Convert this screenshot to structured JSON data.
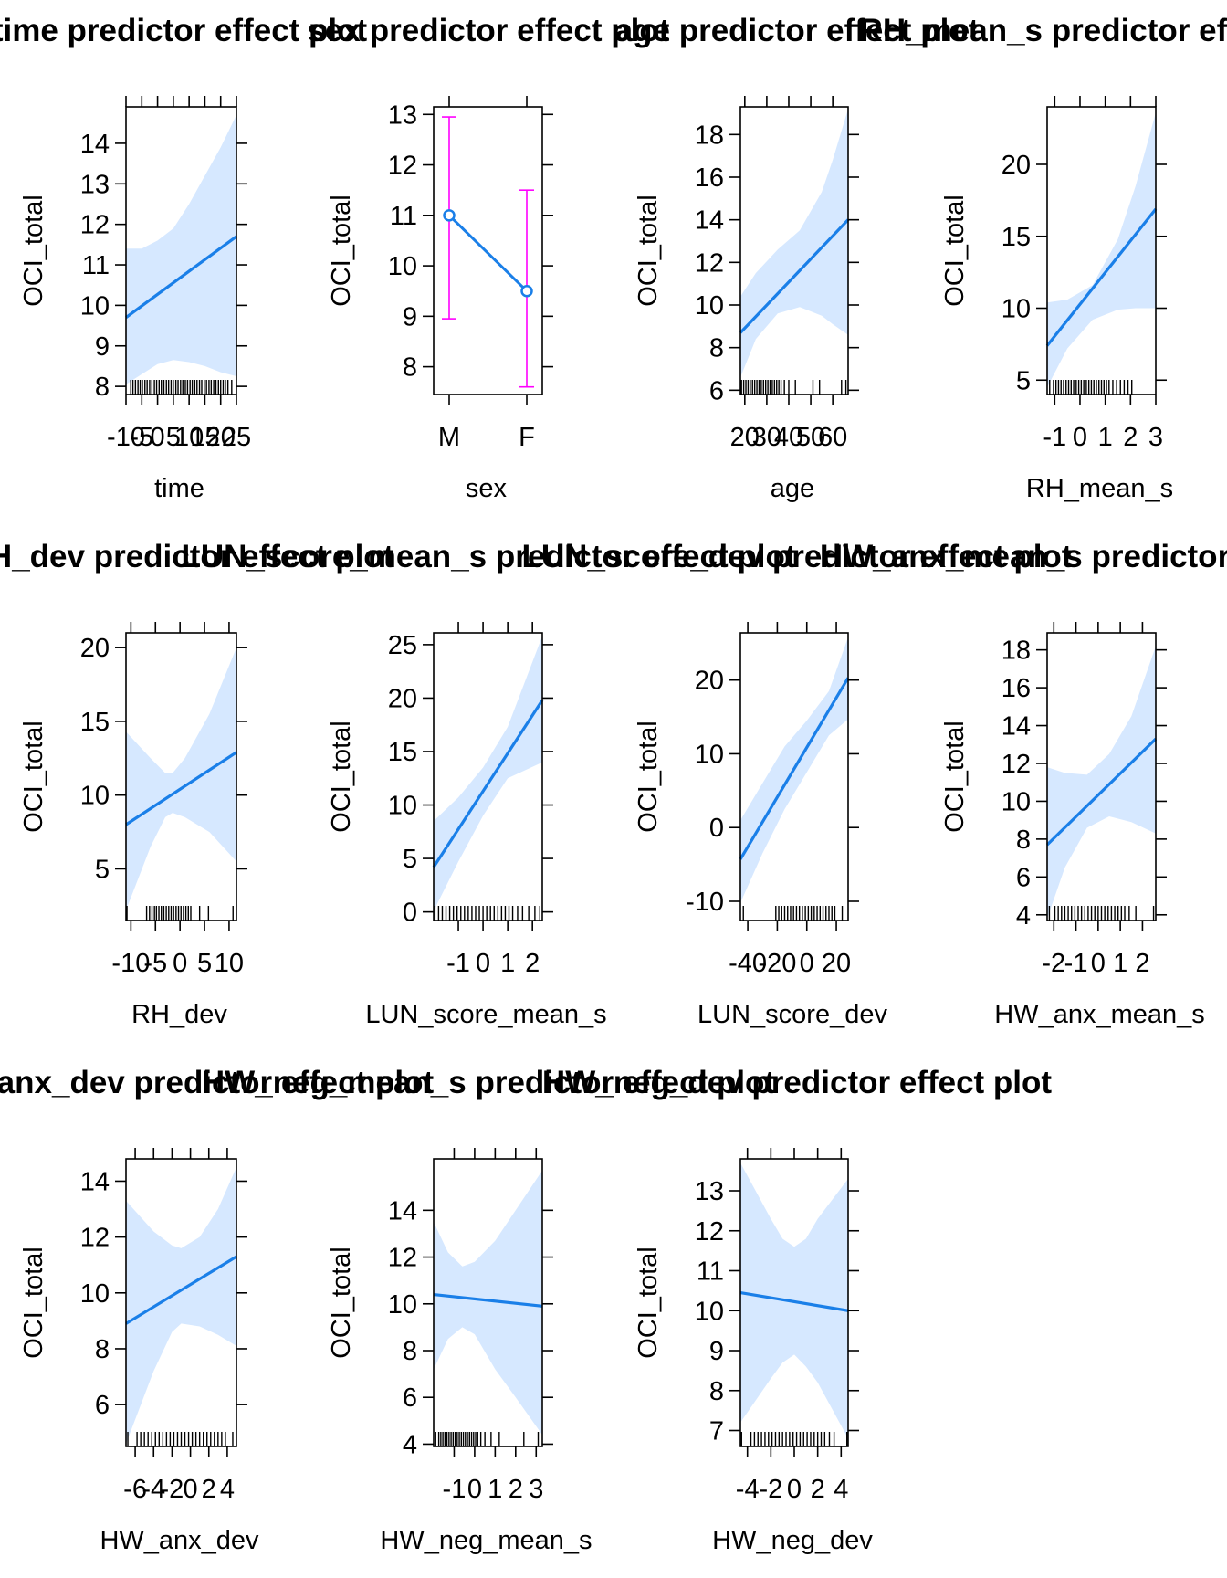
{
  "chart_data": [
    {
      "type": "line",
      "title": "time predictor effect plot",
      "xlabel": "time",
      "ylabel": "OCI_total",
      "xlim": [
        -10,
        25
      ],
      "ylim": [
        7.8,
        14.9
      ],
      "xticks": [
        -10,
        -5,
        0,
        5,
        10,
        15,
        20,
        25
      ],
      "xtick_labels": [
        "-10",
        "-5",
        "0",
        "5",
        "10",
        "15",
        "20",
        "25"
      ],
      "yticks": [
        8,
        9,
        10,
        11,
        12,
        13,
        14
      ],
      "ytick_labels": [
        "8",
        "9",
        "10",
        "11",
        "12",
        "13",
        "14"
      ],
      "fit": {
        "x": [
          -10,
          25
        ],
        "y": [
          9.7,
          11.7
        ]
      },
      "ci_upper": {
        "x": [
          -10,
          -5,
          0,
          5,
          10,
          15,
          20,
          25
        ],
        "y": [
          11.4,
          11.4,
          11.6,
          11.9,
          12.5,
          13.2,
          13.9,
          14.7
        ]
      },
      "ci_lower": {
        "x": [
          -10,
          -5,
          0,
          5,
          10,
          15,
          20,
          25
        ],
        "y": [
          8.05,
          8.3,
          8.55,
          8.65,
          8.6,
          8.5,
          8.35,
          8.25
        ]
      },
      "rug": [
        -8.5,
        -7.8,
        -7,
        -6.2,
        -5.5,
        -4.8,
        -4,
        -3.3,
        -2.5,
        -1.8,
        -1,
        -0.3,
        0.5,
        1.2,
        2,
        2.8,
        3.5,
        4.3,
        5,
        5.8,
        6.5,
        7.3,
        8,
        8.8,
        9.5,
        10.3,
        11,
        11.8,
        12.5,
        13.3,
        14,
        14.8,
        15.5,
        16.3,
        17,
        17.8,
        18.5,
        19.3,
        20,
        20.8,
        21.5,
        22.3,
        23.5
      ]
    },
    {
      "type": "line",
      "title": "sex predictor effect plot",
      "xlabel": "sex",
      "ylabel": "OCI_total",
      "xlim": [
        0.8,
        2.2
      ],
      "ylim": [
        7.45,
        13.15
      ],
      "categories": [
        "M",
        "F"
      ],
      "yticks": [
        8,
        9,
        10,
        11,
        12,
        13
      ],
      "ytick_labels": [
        "8",
        "9",
        "10",
        "11",
        "12",
        "13"
      ],
      "points": [
        11.0,
        9.5
      ],
      "lower": [
        8.95,
        7.6
      ],
      "upper": [
        12.95,
        11.5
      ],
      "colors": {
        "line": "#0080ff",
        "errorbar": "#ff00ff"
      }
    },
    {
      "type": "line",
      "title": "age predictor effect plot",
      "xlabel": "age",
      "ylabel": "OCI_total",
      "xlim": [
        18,
        67
      ],
      "ylim": [
        5.8,
        19.3
      ],
      "xticks": [
        20,
        30,
        40,
        50,
        60
      ],
      "xtick_labels": [
        "20",
        "30",
        "40",
        "50",
        "60"
      ],
      "yticks": [
        6,
        8,
        10,
        12,
        14,
        16,
        18
      ],
      "ytick_labels": [
        "6",
        "8",
        "10",
        "12",
        "14",
        "16",
        "18"
      ],
      "fit": {
        "x": [
          18,
          67
        ],
        "y": [
          8.7,
          14.0
        ]
      },
      "ci_upper": {
        "x": [
          18,
          25,
          35,
          45,
          55,
          60,
          67
        ],
        "y": [
          10.4,
          11.5,
          12.6,
          13.5,
          15.3,
          16.8,
          19.2
        ]
      },
      "ci_lower": {
        "x": [
          18,
          25,
          35,
          45,
          55,
          60,
          67
        ],
        "y": [
          6.6,
          8.4,
          9.6,
          9.9,
          9.5,
          9.1,
          8.6
        ]
      },
      "rug": [
        18.5,
        19.5,
        20.5,
        21.5,
        22.5,
        23.5,
        24.5,
        25.5,
        26.5,
        27.5,
        28.5,
        29.5,
        30.5,
        31.5,
        32.5,
        33.5,
        34.5,
        35.5,
        36.5,
        38,
        40,
        43,
        51,
        54,
        64,
        66
      ]
    },
    {
      "type": "line",
      "title": "RH_mean_s predictor effect plot",
      "xlabel": "RH_mean_s",
      "ylabel": "OCI_total",
      "xlim": [
        -1.3,
        3.0
      ],
      "ylim": [
        4.0,
        24.0
      ],
      "xticks": [
        -1,
        0,
        1,
        2,
        3
      ],
      "xtick_labels": [
        "-1",
        "0",
        "1",
        "2",
        "3"
      ],
      "yticks": [
        5,
        10,
        15,
        20
      ],
      "ytick_labels": [
        "5",
        "10",
        "15",
        "20"
      ],
      "fit": {
        "x": [
          -1.3,
          3.0
        ],
        "y": [
          7.4,
          16.9
        ]
      },
      "ci_upper": {
        "x": [
          -1.3,
          -0.5,
          0.5,
          1.5,
          2.2,
          3.0
        ],
        "y": [
          10.4,
          10.6,
          11.6,
          14.8,
          18.5,
          23.6
        ]
      },
      "ci_lower": {
        "x": [
          -1.3,
          -0.5,
          0.5,
          1.5,
          2.2,
          3.0
        ],
        "y": [
          4.5,
          7.2,
          9.2,
          9.9,
          10.0,
          10.0
        ]
      },
      "rug": [
        -1.2,
        -1.05,
        -0.95,
        -0.85,
        -0.75,
        -0.65,
        -0.55,
        -0.45,
        -0.35,
        -0.25,
        -0.15,
        -0.05,
        0.05,
        0.15,
        0.25,
        0.35,
        0.45,
        0.55,
        0.65,
        0.75,
        0.85,
        0.95,
        1.05,
        1.15,
        1.3,
        1.45,
        1.6,
        1.75,
        1.9,
        2.05
      ]
    },
    {
      "type": "line",
      "title": "RH_dev predictor effect plot",
      "xlabel": "RH_dev",
      "ylabel": "OCI_total",
      "xlim": [
        -11,
        11.5
      ],
      "ylim": [
        1.5,
        21.0
      ],
      "xticks": [
        -10,
        -5,
        0,
        5,
        10
      ],
      "xtick_labels": [
        "-10",
        "-5",
        "0",
        "5",
        "10"
      ],
      "yticks": [
        5,
        10,
        15,
        20
      ],
      "ytick_labels": [
        "5",
        "10",
        "15",
        "20"
      ],
      "fit": {
        "x": [
          -11,
          11.5
        ],
        "y": [
          8.0,
          12.9
        ]
      },
      "ci_upper": {
        "x": [
          -11,
          -6,
          -3,
          -1.5,
          1,
          6,
          11.5
        ],
        "y": [
          14.3,
          12.5,
          11.5,
          11.5,
          12.5,
          15.5,
          20.0
        ]
      },
      "ci_lower": {
        "x": [
          -11,
          -6,
          -3,
          -1.5,
          1,
          6,
          11.5
        ],
        "y": [
          2.2,
          6.5,
          8.5,
          8.8,
          8.5,
          7.5,
          5.5
        ]
      },
      "rug": [
        -10.8,
        -6.8,
        -6.2,
        -5.7,
        -5.2,
        -4.8,
        -4.3,
        -3.8,
        -3.3,
        -2.8,
        -2.3,
        -1.8,
        -1.3,
        -0.8,
        -0.3,
        0.2,
        0.7,
        1.2,
        1.7,
        2.2,
        4,
        5.8,
        10.8
      ]
    },
    {
      "type": "line",
      "title": "LUN_score_mean_s predictor effect plot",
      "xlabel": "LUN_score_mean_s",
      "ylabel": "OCI_total",
      "xlim": [
        -2.0,
        2.4
      ],
      "ylim": [
        -0.8,
        26.1
      ],
      "xticks": [
        -1,
        0,
        1,
        2
      ],
      "xtick_labels": [
        "-1",
        "0",
        "1",
        "2"
      ],
      "yticks": [
        0,
        5,
        10,
        15,
        20,
        25
      ],
      "ytick_labels": [
        "0",
        "5",
        "10",
        "15",
        "20",
        "25"
      ],
      "fit": {
        "x": [
          -2.0,
          2.4
        ],
        "y": [
          4.2,
          19.8
        ]
      },
      "ci_upper": {
        "x": [
          -2.0,
          -1.0,
          0,
          1.0,
          2.4
        ],
        "y": [
          8.5,
          10.7,
          13.5,
          17.3,
          25.8
        ]
      },
      "ci_lower": {
        "x": [
          -2.0,
          -1.0,
          0,
          1.0,
          2.4
        ],
        "y": [
          0.1,
          4.7,
          9.0,
          12.5,
          14.0
        ]
      },
      "rug": [
        -1.95,
        -1.8,
        -1.65,
        -1.5,
        -1.35,
        -1.2,
        -1.05,
        -0.9,
        -0.75,
        -0.6,
        -0.45,
        -0.3,
        -0.15,
        0,
        0.15,
        0.3,
        0.45,
        0.6,
        0.75,
        0.9,
        1.05,
        1.2,
        1.4,
        1.6,
        1.85,
        2.1,
        2.3
      ]
    },
    {
      "type": "line",
      "title": "LUN_score_dev predictor effect plot",
      "xlabel": "LUN_score_dev",
      "ylabel": "OCI_total",
      "xlim": [
        -45,
        28
      ],
      "ylim": [
        -12.6,
        26.4
      ],
      "xticks": [
        -40,
        -20,
        0,
        20
      ],
      "xtick_labels": [
        "-40",
        "-20",
        "0",
        "20"
      ],
      "yticks": [
        -10,
        0,
        10,
        20
      ],
      "ytick_labels": [
        "-10",
        "0",
        "10",
        "20"
      ],
      "fit": {
        "x": [
          -45,
          28
        ],
        "y": [
          -4.3,
          20.3
        ]
      },
      "ci_upper": {
        "x": [
          -45,
          -30,
          -15,
          0,
          15,
          28
        ],
        "y": [
          1.0,
          6.0,
          11.0,
          14.5,
          18.5,
          25.8
        ]
      },
      "ci_lower": {
        "x": [
          -45,
          -30,
          -15,
          0,
          15,
          28
        ],
        "y": [
          -10.2,
          -3.5,
          2.5,
          7.5,
          12.5,
          14.7
        ]
      },
      "rug": [
        -43,
        -21,
        -19,
        -17,
        -15,
        -13,
        -11,
        -9,
        -7,
        -5,
        -3,
        -1,
        1,
        3,
        5,
        7,
        9,
        11,
        13,
        15,
        17,
        19,
        24
      ]
    },
    {
      "type": "line",
      "title": "HW_anx_mean_s predictor effect plot",
      "xlabel": "HW_anx_mean_s",
      "ylabel": "OCI_total",
      "xlim": [
        -2.3,
        2.6
      ],
      "ylim": [
        3.7,
        18.9
      ],
      "xticks": [
        -2,
        -1,
        0,
        1,
        2
      ],
      "xtick_labels": [
        "-2",
        "-1",
        "0",
        "1",
        "2"
      ],
      "yticks": [
        4,
        6,
        8,
        10,
        12,
        14,
        16,
        18
      ],
      "ytick_labels": [
        "4",
        "6",
        "8",
        "10",
        "12",
        "14",
        "16",
        "18"
      ],
      "fit": {
        "x": [
          -2.3,
          2.6
        ],
        "y": [
          7.7,
          13.3
        ]
      },
      "ci_upper": {
        "x": [
          -2.3,
          -1.5,
          -0.5,
          0.5,
          1.5,
          2.6
        ],
        "y": [
          11.8,
          11.5,
          11.4,
          12.5,
          14.5,
          18.2
        ]
      },
      "ci_lower": {
        "x": [
          -2.3,
          -1.5,
          -0.5,
          0.5,
          1.5,
          2.6
        ],
        "y": [
          3.8,
          6.5,
          8.6,
          9.2,
          8.9,
          8.3
        ]
      },
      "rug": [
        -2.2,
        -1.95,
        -1.8,
        -1.65,
        -1.5,
        -1.35,
        -1.2,
        -1.05,
        -0.9,
        -0.75,
        -0.6,
        -0.45,
        -0.3,
        -0.15,
        0,
        0.15,
        0.3,
        0.45,
        0.6,
        0.75,
        0.9,
        1.05,
        1.2,
        1.4,
        1.7,
        2.5
      ]
    },
    {
      "type": "line",
      "title": "HW_anx_dev predictor effect plot",
      "xlabel": "HW_anx_dev",
      "ylabel": "OCI_total",
      "xlim": [
        -7,
        5
      ],
      "ylim": [
        4.5,
        14.8
      ],
      "xticks": [
        -6,
        -4,
        -2,
        0,
        2,
        4
      ],
      "xtick_labels": [
        "-6",
        "-4",
        "-2",
        "0",
        "2",
        "4"
      ],
      "yticks": [
        6,
        8,
        10,
        12,
        14
      ],
      "ytick_labels": [
        "6",
        "8",
        "10",
        "12",
        "14"
      ],
      "fit": {
        "x": [
          -7,
          5
        ],
        "y": [
          8.9,
          11.3
        ]
      },
      "ci_upper": {
        "x": [
          -7,
          -4,
          -2,
          -1,
          1,
          3,
          5
        ],
        "y": [
          13.3,
          12.2,
          11.7,
          11.6,
          12.0,
          13.0,
          14.5
        ]
      },
      "ci_lower": {
        "x": [
          -7,
          -4,
          -2,
          -1,
          1,
          3,
          5
        ],
        "y": [
          4.6,
          7.2,
          8.6,
          8.9,
          8.8,
          8.5,
          8.1
        ]
      },
      "rug": [
        -6.8,
        -5.8,
        -5.4,
        -5.0,
        -4.6,
        -4.2,
        -3.8,
        -3.4,
        -3.0,
        -2.6,
        -2.2,
        -1.8,
        -1.4,
        -1.0,
        -0.6,
        -0.2,
        0.2,
        0.6,
        1.0,
        1.4,
        1.8,
        2.2,
        2.6,
        3.0,
        3.4,
        3.8,
        4.6
      ]
    },
    {
      "type": "line",
      "title": "HW_neg_mean_s predictor effect plot",
      "xlabel": "HW_neg_mean_s",
      "ylabel": "OCI_total",
      "xlim": [
        -2.0,
        3.3
      ],
      "ylim": [
        3.9,
        16.2
      ],
      "xticks": [
        -1,
        0,
        1,
        2,
        3
      ],
      "xtick_labels": [
        "-1",
        "0",
        "1",
        "2",
        "3"
      ],
      "yticks": [
        4,
        6,
        8,
        10,
        12,
        14
      ],
      "ytick_labels": [
        "4",
        "6",
        "8",
        "10",
        "12",
        "14"
      ],
      "fit": {
        "x": [
          -2.0,
          3.3
        ],
        "y": [
          10.4,
          9.9
        ]
      },
      "ci_upper": {
        "x": [
          -2.0,
          -1.3,
          -0.6,
          0,
          1.0,
          2.0,
          3.3
        ],
        "y": [
          13.5,
          12.2,
          11.6,
          11.8,
          12.7,
          14.0,
          15.7
        ]
      },
      "ci_lower": {
        "x": [
          -2.0,
          -1.3,
          -0.6,
          0,
          1.0,
          2.0,
          3.3
        ],
        "y": [
          7.2,
          8.5,
          9.0,
          8.7,
          7.2,
          6.0,
          4.4
        ]
      },
      "rug": [
        -1.9,
        -1.75,
        -1.65,
        -1.55,
        -1.45,
        -1.35,
        -1.25,
        -1.15,
        -1.05,
        -0.95,
        -0.85,
        -0.75,
        -0.65,
        -0.55,
        -0.45,
        -0.35,
        -0.25,
        -0.15,
        -0.05,
        0.05,
        0.15,
        0.3,
        0.5,
        0.8,
        1.2,
        2.4,
        3.1
      ]
    },
    {
      "type": "line",
      "title": "HW_neg_dev predictor effect plot",
      "xlabel": "HW_neg_dev",
      "ylabel": "OCI_total",
      "xlim": [
        -4.6,
        4.6
      ],
      "ylim": [
        6.6,
        13.8
      ],
      "xticks": [
        -4,
        -2,
        0,
        2,
        4
      ],
      "xtick_labels": [
        "-4",
        "-2",
        "0",
        "2",
        "4"
      ],
      "yticks": [
        7,
        8,
        9,
        10,
        11,
        12,
        13
      ],
      "ytick_labels": [
        "7",
        "8",
        "9",
        "10",
        "11",
        "12",
        "13"
      ],
      "fit": {
        "x": [
          -4.6,
          4.6
        ],
        "y": [
          10.45,
          10.0
        ]
      },
      "ci_upper": {
        "x": [
          -4.6,
          -2,
          -1,
          0,
          1,
          2,
          4.6
        ],
        "y": [
          13.7,
          12.3,
          11.8,
          11.6,
          11.8,
          12.3,
          13.3
        ]
      },
      "ci_lower": {
        "x": [
          -4.6,
          -2,
          -1,
          0,
          1,
          2,
          4.6
        ],
        "y": [
          7.2,
          8.3,
          8.7,
          8.9,
          8.6,
          8.2,
          6.8
        ]
      },
      "rug": [
        -4.5,
        -3.7,
        -3.4,
        -3.1,
        -2.8,
        -2.5,
        -2.2,
        -1.9,
        -1.6,
        -1.3,
        -1.0,
        -0.7,
        -0.4,
        -0.1,
        0.2,
        0.5,
        0.8,
        1.1,
        1.4,
        1.7,
        2.0,
        2.3,
        2.6,
        3.0,
        3.4,
        4.5
      ]
    }
  ],
  "colors": {
    "fit_line": "#1a7fe8",
    "ci_band": "#d6e8ff",
    "errorbar": "#ff00ff",
    "axis": "#000000"
  }
}
